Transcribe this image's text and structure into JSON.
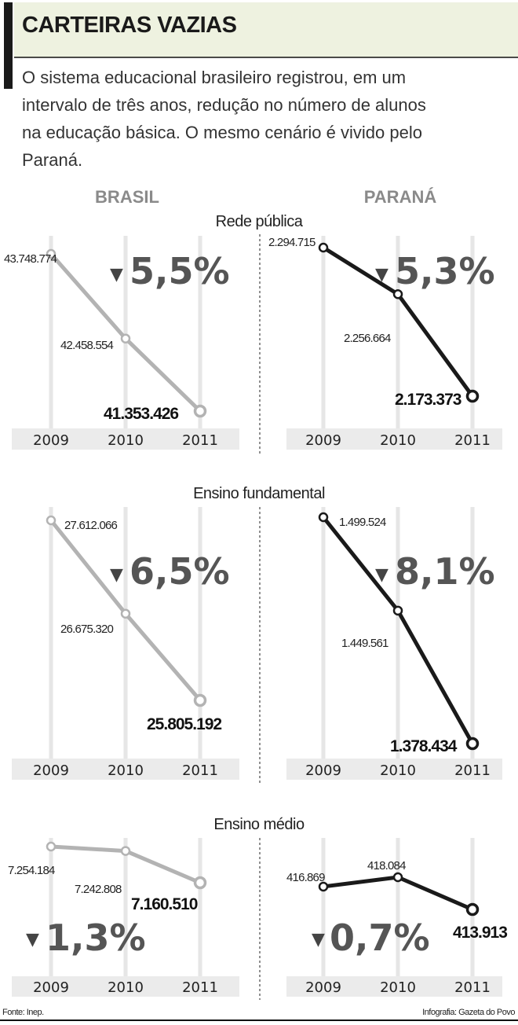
{
  "header": {
    "title": "CARTEIRAS VAZIAS",
    "intro_lines": [
      "O sistema educacional brasileiro registrou, em um",
      "intervalo de três anos, redução no número de alunos",
      "na educação básica. O mesmo cenário é vivido pelo",
      "Paraná."
    ]
  },
  "columns": [
    "BRASIL",
    "PARANÁ"
  ],
  "sections": [
    "Rede pública",
    "Ensino fundamental",
    "Ensino médio"
  ],
  "footer": {
    "source": "Fonte: Inep.",
    "credit": "Infografia: Gazeta do Povo"
  },
  "colors": {
    "brasil_line": "#b3b3b3",
    "parana_line": "#1a1a1a",
    "header_band": "#eef2e0",
    "gridline": "#e6e6e6",
    "year_band": "#ebebeb",
    "percent_text": "#555555"
  },
  "chart_data": [
    {
      "type": "line",
      "section": "Rede pública",
      "region": "BRASIL",
      "x": [
        "2009",
        "2010",
        "2011"
      ],
      "values": [
        43748774,
        42458554,
        41353426
      ],
      "labels": [
        "43.748.774",
        "42.458.554",
        "41.353.426"
      ],
      "change": "5,5%",
      "direction": "down"
    },
    {
      "type": "line",
      "section": "Rede pública",
      "region": "PARANÁ",
      "x": [
        "2009",
        "2010",
        "2011"
      ],
      "values": [
        2294715,
        2256664,
        2173373
      ],
      "labels": [
        "2.294.715",
        "2.256.664",
        "2.173.373"
      ],
      "change": "5,3%",
      "direction": "down"
    },
    {
      "type": "line",
      "section": "Ensino fundamental",
      "region": "BRASIL",
      "x": [
        "2009",
        "2010",
        "2011"
      ],
      "values": [
        27612066,
        26675320,
        25805192
      ],
      "labels": [
        "27.612.066",
        "26.675.320",
        "25.805.192"
      ],
      "change": "6,5%",
      "direction": "down"
    },
    {
      "type": "line",
      "section": "Ensino fundamental",
      "region": "PARANÁ",
      "x": [
        "2009",
        "2010",
        "2011"
      ],
      "values": [
        1499524,
        1449561,
        1378434
      ],
      "labels": [
        "1.499.524",
        "1.449.561",
        "1.378.434"
      ],
      "change": "8,1%",
      "direction": "down"
    },
    {
      "type": "line",
      "section": "Ensino médio",
      "region": "BRASIL",
      "x": [
        "2009",
        "2010",
        "2011"
      ],
      "values": [
        7254184,
        7242808,
        7160510
      ],
      "labels": [
        "7.254.184",
        "7.242.808",
        "7.160.510"
      ],
      "change": "1,3%",
      "direction": "down"
    },
    {
      "type": "line",
      "section": "Ensino médio",
      "region": "PARANÁ",
      "x": [
        "2009",
        "2010",
        "2011"
      ],
      "values": [
        416869,
        418084,
        413913
      ],
      "labels": [
        "416.869",
        "418.084",
        "413.913"
      ],
      "change": "0,7%",
      "direction": "down"
    }
  ]
}
